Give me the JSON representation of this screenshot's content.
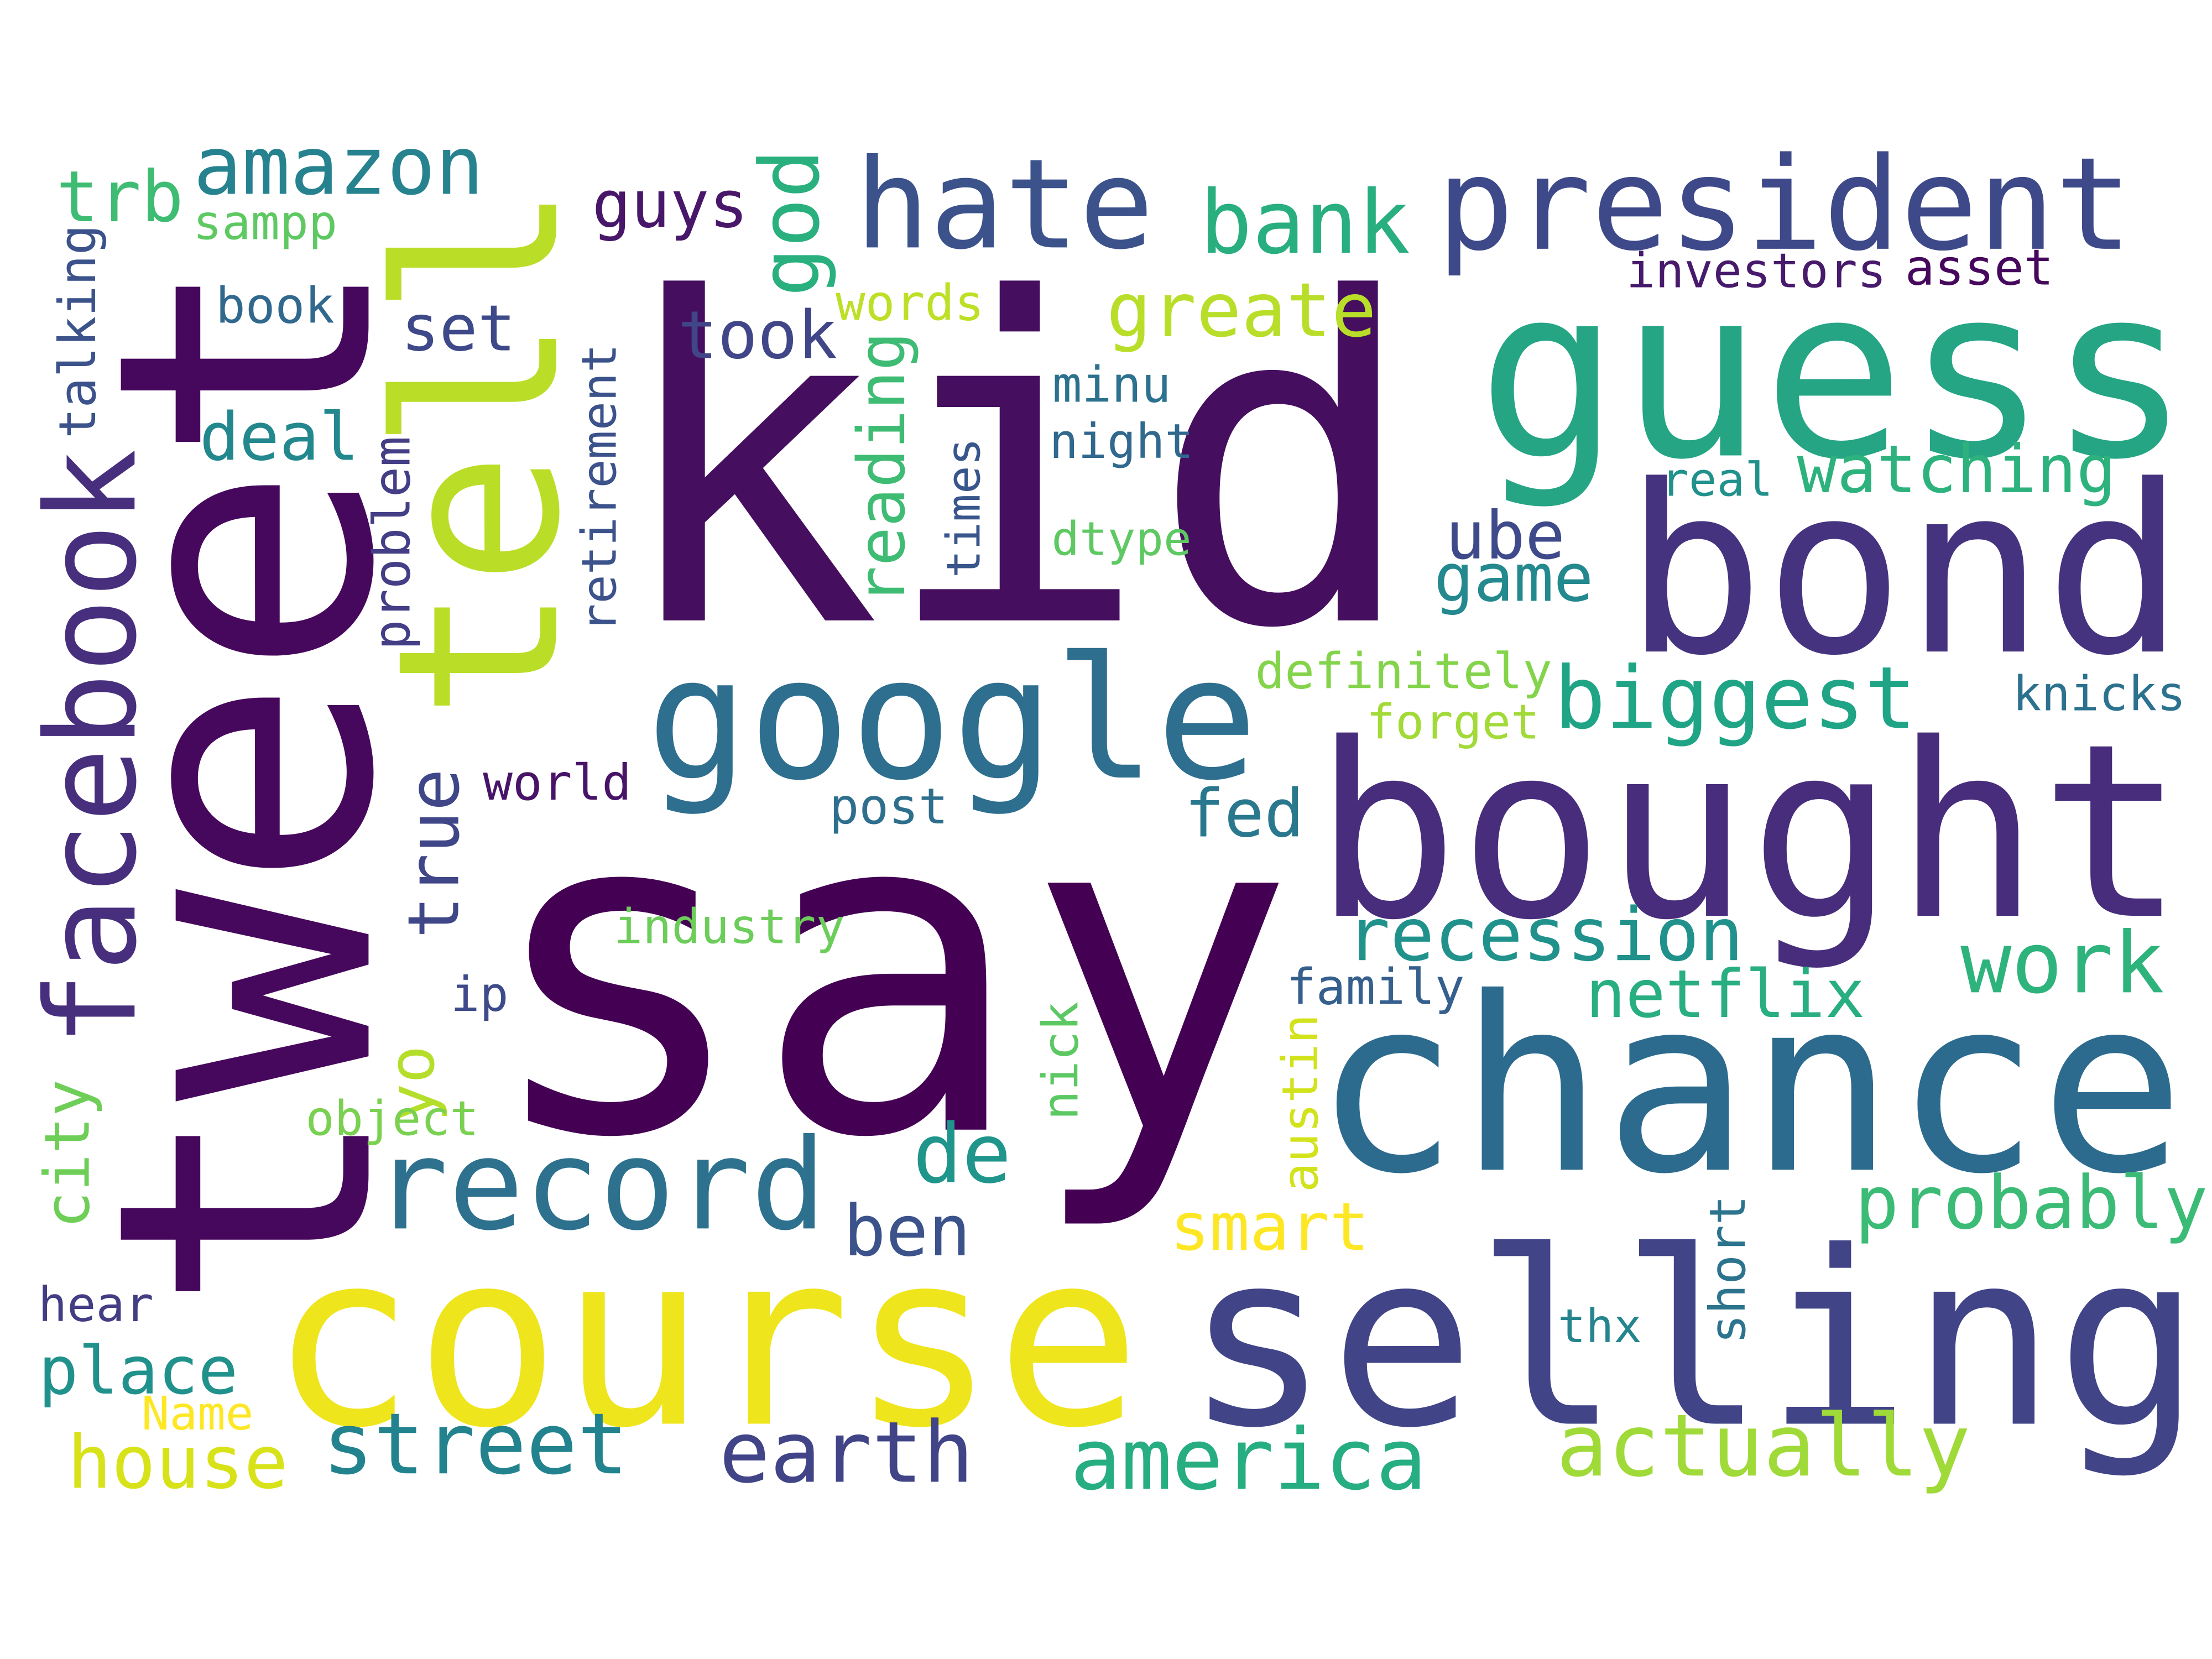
{
  "words": [
    "kid",
    "say",
    "tweet",
    "guess",
    "bond",
    "bought",
    "chance",
    "selling",
    "course",
    "tell",
    "google",
    "record",
    "president",
    "hate",
    "facebook",
    "amazon",
    "trb",
    "sampp",
    "talking",
    "book",
    "set",
    "guys",
    "god",
    "bank",
    "greate",
    "took",
    "words",
    "investors",
    "asset",
    "deal",
    "reading",
    "minu",
    "night",
    "retirement",
    "problem",
    "times",
    "dtype",
    "real",
    "watching",
    "ube",
    "game",
    "biggest",
    "definitely",
    "forget",
    "knicks",
    "world",
    "post",
    "fed",
    "true",
    "industry",
    "recession",
    "work",
    "netflix",
    "family",
    "ip",
    "city",
    "yo",
    "object",
    "nick",
    "austin",
    "de",
    "smart",
    "probably",
    "ben",
    "short",
    "thx",
    "hear",
    "place",
    "Name",
    "house",
    "street",
    "earth",
    "america",
    "actually"
  ]
}
